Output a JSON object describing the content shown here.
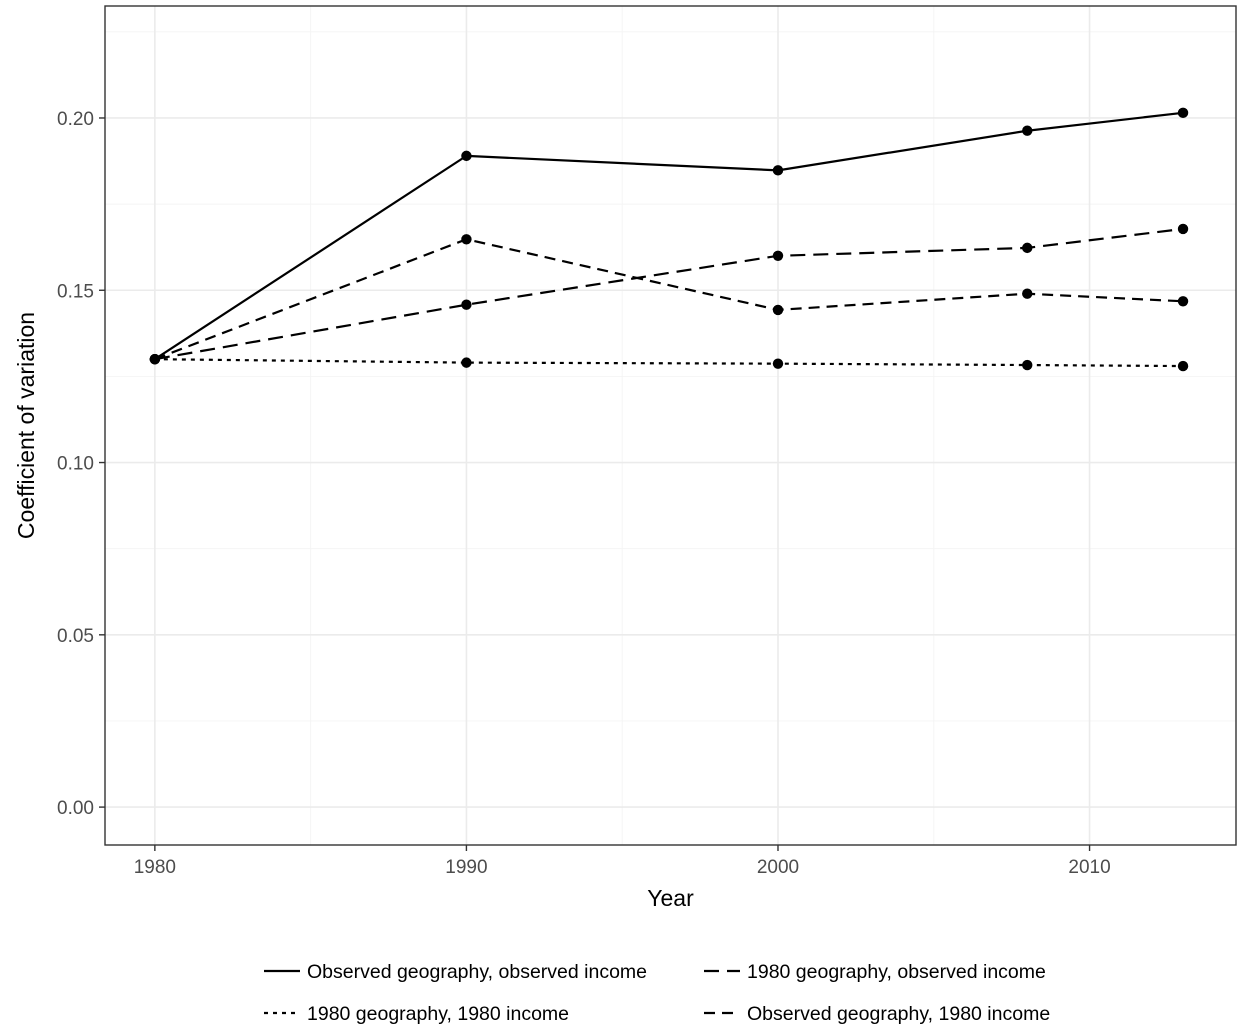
{
  "chart_data": {
    "type": "line",
    "title": "",
    "xlabel": "Year",
    "ylabel": "Coefficient of variation",
    "xlim": [
      1978.4,
      2014.7
    ],
    "ylim": [
      -0.011,
      0.2325
    ],
    "x_ticks": [
      1980,
      1990,
      2000,
      2010
    ],
    "x_tick_labels": [
      "1980",
      "1990",
      "2000",
      "2010"
    ],
    "y_ticks": [
      0.0,
      0.05,
      0.1,
      0.15,
      0.2
    ],
    "y_tick_labels": [
      "0.00",
      "0.05",
      "0.10",
      "0.15",
      "0.20"
    ],
    "grid": true,
    "legend_position": "bottom",
    "series": [
      {
        "name": "Observed geography, observed income",
        "linetype": "solid",
        "x": [
          1980,
          1990,
          2000,
          2008,
          2013
        ],
        "y": [
          0.13,
          0.189,
          0.1848,
          0.1963,
          0.2015
        ]
      },
      {
        "name": "1980 geography, observed income",
        "linetype": "longdash",
        "x": [
          1980,
          1990,
          2000,
          2008,
          2013
        ],
        "y": [
          0.13,
          0.1458,
          0.16,
          0.1623,
          0.1678
        ]
      },
      {
        "name": "1980 geography, 1980 income",
        "linetype": "dotted",
        "x": [
          1980,
          1990,
          2000,
          2008,
          2013
        ],
        "y": [
          0.13,
          0.129,
          0.1287,
          0.1283,
          0.128
        ]
      },
      {
        "name": "Observed geography, 1980 income",
        "linetype": "dashed",
        "x": [
          1980,
          1990,
          2000,
          2008,
          2013
        ],
        "y": [
          0.13,
          0.1648,
          0.1443,
          0.149,
          0.1468
        ]
      }
    ]
  }
}
